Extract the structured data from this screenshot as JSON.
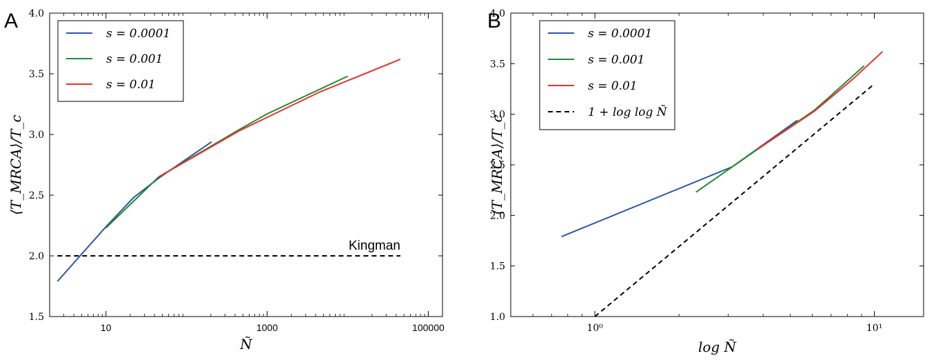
{
  "chart_data": [
    {
      "type": "line",
      "panel_label": "A",
      "xlabel": "Ñ",
      "ylabel": "⟨T_MRCA⟩/T_c",
      "xscale": "log",
      "xlim": [
        2.0,
        150000
      ],
      "ylim": [
        1.5,
        4.0
      ],
      "x_ticks": [
        {
          "value": 10,
          "label": "10"
        },
        {
          "value": 1000,
          "label": "1000"
        },
        {
          "value": 100000,
          "label": "100000"
        }
      ],
      "y_ticks": [
        {
          "value": 1.5,
          "label": "1.5"
        },
        {
          "value": 2.0,
          "label": "2.0"
        },
        {
          "value": 2.5,
          "label": "2.5"
        },
        {
          "value": 3.0,
          "label": "3.0"
        },
        {
          "value": 3.5,
          "label": "3.5"
        },
        {
          "value": 4.0,
          "label": "4.0"
        }
      ],
      "legend_position": "top-left",
      "series": [
        {
          "name": "s = 0.0001",
          "color": "#2a56a4",
          "dash": "solid",
          "in_legend": true,
          "x": [
            2.5,
            10,
            22,
            45,
            205
          ],
          "y": [
            1.79,
            2.24,
            2.48,
            2.64,
            2.94
          ]
        },
        {
          "name": "s = 0.001",
          "color": "#238b2d",
          "dash": "solid",
          "in_legend": true,
          "x": [
            10,
            45,
            450,
            1000,
            10000
          ],
          "y": [
            2.23,
            2.65,
            3.04,
            3.17,
            3.48
          ]
        },
        {
          "name": "s = 0.01",
          "color": "#e8312b",
          "dash": "solid",
          "in_legend": true,
          "x": [
            45,
            450,
            4500,
            45000
          ],
          "y": [
            2.65,
            3.03,
            3.35,
            3.62
          ]
        },
        {
          "name": "Kingman",
          "color": "#000000",
          "dash": "dashed",
          "in_legend": false,
          "x": [
            2.5,
            45000
          ],
          "y": [
            2.0,
            2.0
          ]
        }
      ],
      "annotations": [
        {
          "text": "Kingman",
          "x": 45000,
          "y": 2.0
        }
      ]
    },
    {
      "type": "line",
      "panel_label": "B",
      "xlabel": "log Ñ",
      "ylabel": "⟨T_MRCA⟩/T_c",
      "xscale": "log",
      "xlim": [
        0.5,
        15
      ],
      "ylim": [
        1.0,
        4.0
      ],
      "x_ticks": [
        {
          "value": 1,
          "label": "10⁰"
        },
        {
          "value": 10,
          "label": "10¹"
        }
      ],
      "y_ticks": [
        {
          "value": 1.0,
          "label": "1.0"
        },
        {
          "value": 1.5,
          "label": "1.5"
        },
        {
          "value": 2.0,
          "label": "2.0"
        },
        {
          "value": 2.5,
          "label": "2.5"
        },
        {
          "value": 3.0,
          "label": "3.0"
        },
        {
          "value": 3.5,
          "label": "3.5"
        },
        {
          "value": 4.0,
          "label": "4.0"
        }
      ],
      "legend_position": "top-left",
      "series": [
        {
          "name": "s = 0.0001",
          "color": "#2a56a4",
          "dash": "solid",
          "in_legend": true,
          "x": [
            0.76,
            3.1,
            5.3
          ],
          "y": [
            1.79,
            2.48,
            2.94
          ]
        },
        {
          "name": "s = 0.001",
          "color": "#238b2d",
          "dash": "solid",
          "in_legend": true,
          "x": [
            2.3,
            3.8,
            6.1,
            6.9,
            9.2
          ],
          "y": [
            2.23,
            2.65,
            3.04,
            3.17,
            3.48
          ]
        },
        {
          "name": "s = 0.01",
          "color": "#e8312b",
          "dash": "solid",
          "in_legend": true,
          "x": [
            3.8,
            6.1,
            8.4,
            10.7
          ],
          "y": [
            2.65,
            3.03,
            3.35,
            3.62
          ]
        },
        {
          "name": "1 + log log Ñ",
          "color": "#000000",
          "dash": "dashed",
          "in_legend": true,
          "x": [
            1.0,
            10.0
          ],
          "y": [
            1.0,
            3.3
          ]
        }
      ]
    }
  ]
}
